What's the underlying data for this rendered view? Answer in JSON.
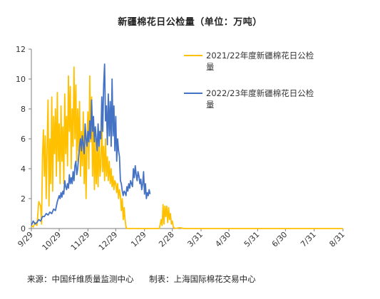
{
  "chart_data": {
    "type": "line",
    "title": "新疆棉花日公检量（单位：万吨）",
    "xlabel": "",
    "ylabel": "",
    "ylim": [
      0,
      12
    ],
    "yticks": [
      0,
      2,
      4,
      6,
      8,
      10,
      12
    ],
    "grid": false,
    "legend_position": "top-right",
    "x_tick_labels": [
      "9/29",
      "10/29",
      "11/29",
      "12/29",
      "1/29",
      "2/28",
      "3/31",
      "4/30",
      "5/31",
      "6/30",
      "7/31",
      "8/31"
    ],
    "x_tick_days": [
      0,
      30,
      61,
      91,
      122,
      152,
      183,
      213,
      244,
      274,
      305,
      336
    ],
    "series": [
      {
        "name": "2021/22年度新疆棉花日公检量",
        "color": "#FFC000",
        "points": [
          [
            0,
            0.2
          ],
          [
            2,
            0.1
          ],
          [
            4,
            0.4
          ],
          [
            6,
            0.2
          ],
          [
            8,
            1.8
          ],
          [
            10,
            1.5
          ],
          [
            11,
            0.3
          ],
          [
            12,
            4.8
          ],
          [
            13,
            6.6
          ],
          [
            14,
            3.5
          ],
          [
            15,
            6.2
          ],
          [
            16,
            2.0
          ],
          [
            17,
            5.5
          ],
          [
            18,
            8.6
          ],
          [
            19,
            1.5
          ],
          [
            20,
            6.0
          ],
          [
            21,
            3.0
          ],
          [
            22,
            8.8
          ],
          [
            23,
            2.5
          ],
          [
            24,
            7.5
          ],
          [
            25,
            5.0
          ],
          [
            26,
            8.0
          ],
          [
            27,
            3.5
          ],
          [
            28,
            9.1
          ],
          [
            29,
            4.5
          ],
          [
            30,
            7.0
          ],
          [
            31,
            3.0
          ],
          [
            32,
            8.2
          ],
          [
            33,
            4.5
          ],
          [
            34,
            6.8
          ],
          [
            35,
            3.0
          ],
          [
            36,
            9.0
          ],
          [
            37,
            5.0
          ],
          [
            38,
            7.5
          ],
          [
            39,
            4.2
          ],
          [
            40,
            10.2
          ],
          [
            41,
            6.5
          ],
          [
            42,
            9.5
          ],
          [
            43,
            4.0
          ],
          [
            44,
            8.0
          ],
          [
            45,
            5.5
          ],
          [
            46,
            10.8
          ],
          [
            47,
            6.0
          ],
          [
            48,
            9.6
          ],
          [
            49,
            4.5
          ],
          [
            50,
            8.0
          ],
          [
            51,
            5.2
          ],
          [
            52,
            8.5
          ],
          [
            53,
            3.5
          ],
          [
            54,
            6.5
          ],
          [
            55,
            4.2
          ],
          [
            56,
            7.8
          ],
          [
            57,
            3.0
          ],
          [
            58,
            6.2
          ],
          [
            59,
            2.0
          ],
          [
            60,
            5.5
          ],
          [
            61,
            7.8
          ],
          [
            62,
            4.0
          ],
          [
            63,
            10.2
          ],
          [
            64,
            5.8
          ],
          [
            65,
            8.8
          ],
          [
            66,
            3.5
          ],
          [
            67,
            7.0
          ],
          [
            68,
            2.6
          ],
          [
            69,
            6.0
          ],
          [
            70,
            3.0
          ],
          [
            71,
            5.5
          ],
          [
            72,
            2.8
          ],
          [
            73,
            6.5
          ],
          [
            74,
            3.5
          ],
          [
            75,
            4.2
          ],
          [
            76,
            7.5
          ],
          [
            77,
            3.8
          ],
          [
            78,
            5.5
          ],
          [
            79,
            3.2
          ],
          [
            80,
            6.0
          ],
          [
            81,
            3.5
          ],
          [
            82,
            4.8
          ],
          [
            83,
            3.2
          ],
          [
            84,
            4.5
          ],
          [
            85,
            3.0
          ],
          [
            86,
            4.0
          ],
          [
            87,
            2.8
          ],
          [
            88,
            3.5
          ],
          [
            89,
            2.6
          ],
          [
            90,
            3.2
          ],
          [
            91,
            3.0
          ],
          [
            92,
            2.4
          ],
          [
            93,
            3.0
          ],
          [
            94,
            2.0
          ],
          [
            95,
            2.6
          ],
          [
            96,
            2.2
          ],
          [
            97,
            1.2
          ],
          [
            98,
            2.0
          ],
          [
            99,
            0.6
          ],
          [
            100,
            1.4
          ],
          [
            101,
            0.6
          ],
          [
            102,
            0.1
          ],
          [
            103,
            0.0
          ],
          [
            110,
            0.0
          ],
          [
            120,
            0.0
          ],
          [
            130,
            0.0
          ],
          [
            138,
            0.0
          ],
          [
            140,
            0.6
          ],
          [
            141,
            0.2
          ],
          [
            142,
            1.6
          ],
          [
            143,
            0.3
          ],
          [
            144,
            1.5
          ],
          [
            145,
            0.8
          ],
          [
            146,
            1.5
          ],
          [
            147,
            0.4
          ],
          [
            148,
            1.4
          ],
          [
            149,
            0.6
          ],
          [
            150,
            1.0
          ],
          [
            151,
            0.3
          ],
          [
            152,
            0.5
          ],
          [
            153,
            0.1
          ],
          [
            155,
            0.0
          ],
          [
            160,
            0.05
          ],
          [
            165,
            0.0
          ],
          [
            175,
            0.0
          ],
          [
            195,
            0.0
          ],
          [
            220,
            0.0
          ],
          [
            250,
            0.0
          ],
          [
            280,
            0.0
          ],
          [
            300,
            0.0
          ],
          [
            320,
            0.0
          ],
          [
            336,
            0.0
          ]
        ]
      },
      {
        "name": "2022/23年度新疆棉花日公检量",
        "color": "#4472C4",
        "points": [
          [
            0,
            0.2
          ],
          [
            2,
            0.5
          ],
          [
            4,
            0.3
          ],
          [
            6,
            0.4
          ],
          [
            8,
            0.6
          ],
          [
            10,
            0.5
          ],
          [
            12,
            0.8
          ],
          [
            14,
            0.8
          ],
          [
            16,
            1.0
          ],
          [
            18,
            0.9
          ],
          [
            20,
            1.1
          ],
          [
            22,
            1.0
          ],
          [
            24,
            1.3
          ],
          [
            26,
            1.2
          ],
          [
            28,
            1.8
          ],
          [
            30,
            2.2
          ],
          [
            31,
            2.0
          ],
          [
            32,
            2.4
          ],
          [
            33,
            2.1
          ],
          [
            34,
            2.5
          ],
          [
            35,
            2.3
          ],
          [
            36,
            3.2
          ],
          [
            37,
            2.8
          ],
          [
            38,
            2.6
          ],
          [
            39,
            3.0
          ],
          [
            40,
            2.7
          ],
          [
            41,
            3.6
          ],
          [
            42,
            3.0
          ],
          [
            43,
            3.4
          ],
          [
            44,
            3.0
          ],
          [
            45,
            3.8
          ],
          [
            46,
            3.2
          ],
          [
            47,
            4.2
          ],
          [
            48,
            4.5
          ],
          [
            49,
            3.6
          ],
          [
            50,
            4.0
          ],
          [
            51,
            4.8
          ],
          [
            52,
            5.5
          ],
          [
            53,
            6.0
          ],
          [
            54,
            5.2
          ],
          [
            55,
            6.2
          ],
          [
            56,
            5.6
          ],
          [
            57,
            5.0
          ],
          [
            58,
            7.0
          ],
          [
            59,
            6.0
          ],
          [
            60,
            5.5
          ],
          [
            61,
            6.5
          ],
          [
            62,
            5.8
          ],
          [
            63,
            7.2
          ],
          [
            64,
            6.0
          ],
          [
            65,
            8.6
          ],
          [
            66,
            6.5
          ],
          [
            67,
            7.5
          ],
          [
            68,
            5.8
          ],
          [
            69,
            6.8
          ],
          [
            70,
            6.0
          ],
          [
            71,
            5.2
          ],
          [
            72,
            7.0
          ],
          [
            73,
            5.5
          ],
          [
            74,
            6.5
          ],
          [
            75,
            6.0
          ],
          [
            76,
            8.8
          ],
          [
            77,
            6.5
          ],
          [
            78,
            9.6
          ],
          [
            79,
            11.0
          ],
          [
            80,
            7.2
          ],
          [
            81,
            8.2
          ],
          [
            82,
            5.6
          ],
          [
            83,
            9.0
          ],
          [
            84,
            6.2
          ],
          [
            85,
            8.5
          ],
          [
            86,
            5.5
          ],
          [
            87,
            10.0
          ],
          [
            88,
            6.2
          ],
          [
            89,
            8.2
          ],
          [
            90,
            5.2
          ],
          [
            91,
            7.5
          ],
          [
            92,
            4.5
          ],
          [
            93,
            6.0
          ],
          [
            94,
            5.2
          ],
          [
            95,
            4.8
          ],
          [
            96,
            3.2
          ],
          [
            97,
            3.0
          ],
          [
            98,
            2.5
          ],
          [
            99,
            2.2
          ],
          [
            100,
            2.5
          ],
          [
            101,
            2.4
          ],
          [
            102,
            2.2
          ],
          [
            103,
            2.8
          ],
          [
            104,
            2.5
          ],
          [
            105,
            3.0
          ],
          [
            106,
            2.7
          ],
          [
            107,
            3.2
          ],
          [
            108,
            3.0
          ],
          [
            109,
            2.8
          ],
          [
            110,
            4.0
          ],
          [
            111,
            3.4
          ],
          [
            112,
            4.2
          ],
          [
            113,
            3.6
          ],
          [
            114,
            3.2
          ],
          [
            115,
            3.8
          ],
          [
            116,
            3.5
          ],
          [
            117,
            3.0
          ],
          [
            118,
            3.3
          ],
          [
            119,
            2.6
          ],
          [
            120,
            3.0
          ],
          [
            121,
            3.8
          ],
          [
            122,
            2.3
          ],
          [
            123,
            3.0
          ],
          [
            124,
            2.0
          ],
          [
            125,
            2.4
          ],
          [
            126,
            2.2
          ],
          [
            127,
            2.6
          ],
          [
            128,
            2.3
          ]
        ]
      }
    ]
  },
  "footer": {
    "source": "来源：中国纤维质量监测中心",
    "maker": "制表：上海国际棉花交易中心"
  }
}
